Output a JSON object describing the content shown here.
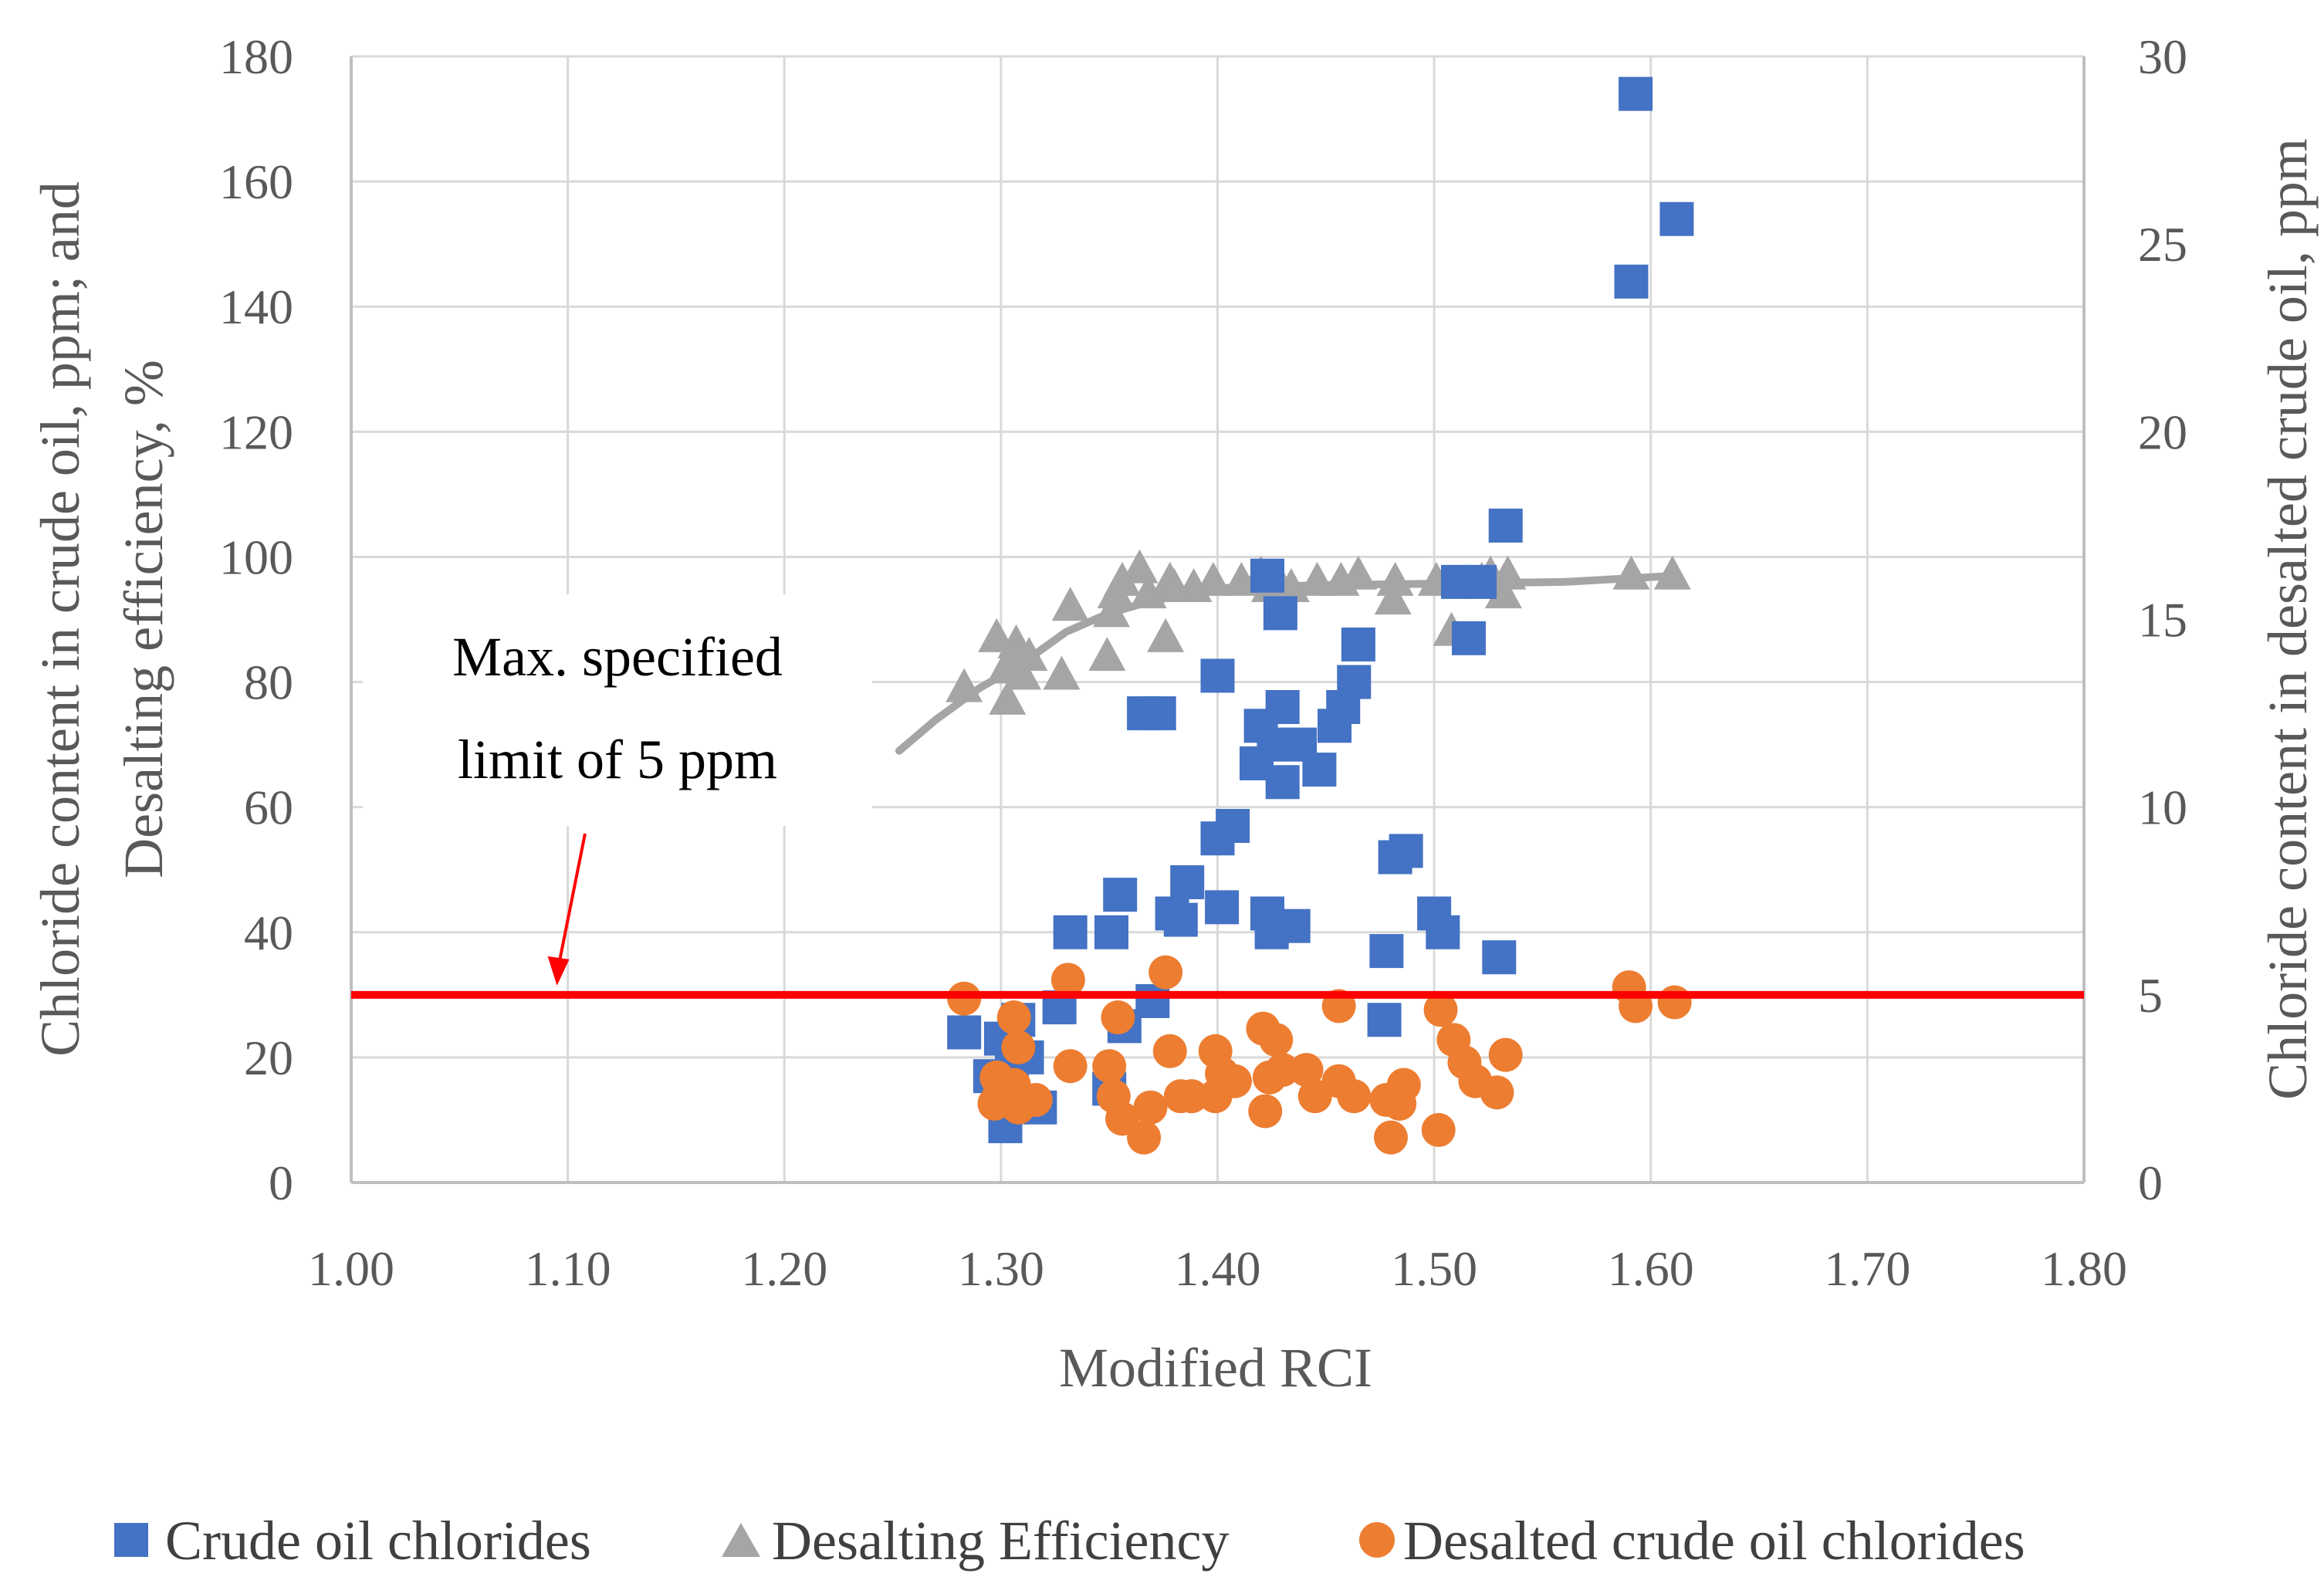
{
  "chart_data": {
    "type": "scatter",
    "xlabel": "Modified RCI",
    "ylabel_left": "Chloride content in crude oil, ppm; and Desalting efficiency, %",
    "ylabel_left_lines": [
      "Chloride content in crude oil, ppm; and",
      "Desalting efficiency, %"
    ],
    "ylabel_right": "Chloride content in desalted crude oil, ppm",
    "xlim": [
      1.0,
      1.8
    ],
    "ylim_left": [
      0,
      180
    ],
    "ylim_right": [
      0,
      30
    ],
    "x_ticks": [
      "1.00",
      "1.10",
      "1.20",
      "1.30",
      "1.40",
      "1.50",
      "1.60",
      "1.70",
      "1.80"
    ],
    "y_left_ticks": [
      "0",
      "20",
      "40",
      "60",
      "80",
      "100",
      "120",
      "140",
      "160",
      "180"
    ],
    "y_right_ticks": [
      "0",
      "5",
      "10",
      "15",
      "20",
      "25",
      "30"
    ],
    "grid": true,
    "legend_position": "bottom",
    "limit_line": {
      "axis": "right",
      "value": 5,
      "color": "#FF0000"
    },
    "annotation": {
      "lines": [
        "Max. specified",
        "limit of 5 ppm"
      ],
      "points_to": {
        "x": 1.095,
        "y_right": 5
      }
    },
    "series": [
      {
        "name": "Crude oil chlorides",
        "marker": "square",
        "color": "#4472C4",
        "axis": "left",
        "points": [
          [
            1.593,
            174
          ],
          [
            1.612,
            154
          ],
          [
            1.591,
            144
          ],
          [
            1.533,
            105
          ],
          [
            1.423,
            97
          ],
          [
            1.521,
            96
          ],
          [
            1.511,
            96
          ],
          [
            1.429,
            91
          ],
          [
            1.516,
            87
          ],
          [
            1.465,
            86
          ],
          [
            1.4,
            81
          ],
          [
            1.463,
            80
          ],
          [
            1.458,
            76
          ],
          [
            1.43,
            76
          ],
          [
            1.366,
            75
          ],
          [
            1.373,
            75
          ],
          [
            1.454,
            73
          ],
          [
            1.42,
            73
          ],
          [
            1.426,
            70
          ],
          [
            1.438,
            70
          ],
          [
            1.418,
            67
          ],
          [
            1.447,
            66
          ],
          [
            1.43,
            64
          ],
          [
            1.407,
            57
          ],
          [
            1.4,
            55
          ],
          [
            1.487,
            53
          ],
          [
            1.482,
            52
          ],
          [
            1.386,
            48
          ],
          [
            1.355,
            46
          ],
          [
            1.379,
            43
          ],
          [
            1.402,
            44
          ],
          [
            1.383,
            42
          ],
          [
            1.423,
            43
          ],
          [
            1.5,
            43
          ],
          [
            1.435,
            41
          ],
          [
            1.425,
            40
          ],
          [
            1.504,
            40
          ],
          [
            1.332,
            40
          ],
          [
            1.351,
            40
          ],
          [
            1.53,
            36
          ],
          [
            1.478,
            37
          ],
          [
            1.37,
            29
          ],
          [
            1.327,
            28
          ],
          [
            1.308,
            26
          ],
          [
            1.477,
            26
          ],
          [
            1.283,
            24
          ],
          [
            1.357,
            25
          ],
          [
            1.312,
            20
          ],
          [
            1.3,
            23
          ],
          [
            1.295,
            17
          ],
          [
            1.305,
            18
          ],
          [
            1.35,
            15
          ],
          [
            1.318,
            12
          ],
          [
            1.302,
            9
          ]
        ]
      },
      {
        "name": "Desalting Efficiency",
        "marker": "triangle",
        "color": "#A5A5A5",
        "axis": "left",
        "points": [
          [
            1.61,
            97
          ],
          [
            1.591,
            97
          ],
          [
            1.526,
            97
          ],
          [
            1.534,
            97
          ],
          [
            1.522,
            96
          ],
          [
            1.501,
            96
          ],
          [
            1.482,
            96
          ],
          [
            1.465,
            97
          ],
          [
            1.446,
            96
          ],
          [
            1.457,
            96
          ],
          [
            1.428,
            96
          ],
          [
            1.42,
            97
          ],
          [
            1.424,
            95
          ],
          [
            1.434,
            95
          ],
          [
            1.411,
            96
          ],
          [
            1.398,
            96
          ],
          [
            1.389,
            95
          ],
          [
            1.378,
            96
          ],
          [
            1.38,
            95
          ],
          [
            1.364,
            98
          ],
          [
            1.356,
            96
          ],
          [
            1.353,
            94
          ],
          [
            1.368,
            94
          ],
          [
            1.532,
            94
          ],
          [
            1.481,
            93
          ],
          [
            1.351,
            91
          ],
          [
            1.332,
            92
          ],
          [
            1.508,
            88
          ],
          [
            1.376,
            87
          ],
          [
            1.298,
            87
          ],
          [
            1.307,
            86
          ],
          [
            1.313,
            84
          ],
          [
            1.349,
            84
          ],
          [
            1.302,
            82
          ],
          [
            1.306,
            83
          ],
          [
            1.328,
            81
          ],
          [
            1.31,
            81
          ],
          [
            1.283,
            79
          ],
          [
            1.303,
            77
          ]
        ]
      },
      {
        "name": "Desalted crude oil chlorides",
        "marker": "circle",
        "color": "#ED7D31",
        "axis": "right",
        "points": [
          [
            1.59,
            5.2
          ],
          [
            1.611,
            4.8
          ],
          [
            1.593,
            4.7
          ],
          [
            1.283,
            4.9
          ],
          [
            1.331,
            5.4
          ],
          [
            1.376,
            5.6
          ],
          [
            1.306,
            4.4
          ],
          [
            1.354,
            4.4
          ],
          [
            1.456,
            4.7
          ],
          [
            1.503,
            4.6
          ],
          [
            1.421,
            4.1
          ],
          [
            1.427,
            3.8
          ],
          [
            1.509,
            3.8
          ],
          [
            1.308,
            3.6
          ],
          [
            1.378,
            3.5
          ],
          [
            1.399,
            3.5
          ],
          [
            1.533,
            3.4
          ],
          [
            1.514,
            3.2
          ],
          [
            1.332,
            3.1
          ],
          [
            1.35,
            3.1
          ],
          [
            1.402,
            2.9
          ],
          [
            1.43,
            3.0
          ],
          [
            1.441,
            3.0
          ],
          [
            1.298,
            2.8
          ],
          [
            1.306,
            2.6
          ],
          [
            1.408,
            2.7
          ],
          [
            1.424,
            2.8
          ],
          [
            1.456,
            2.7
          ],
          [
            1.519,
            2.7
          ],
          [
            1.486,
            2.6
          ],
          [
            1.529,
            2.4
          ],
          [
            1.299,
            2.3
          ],
          [
            1.316,
            2.2
          ],
          [
            1.352,
            2.3
          ],
          [
            1.383,
            2.3
          ],
          [
            1.388,
            2.3
          ],
          [
            1.399,
            2.3
          ],
          [
            1.445,
            2.3
          ],
          [
            1.463,
            2.3
          ],
          [
            1.484,
            2.1
          ],
          [
            1.297,
            2.1
          ],
          [
            1.308,
            2.0
          ],
          [
            1.369,
            2.0
          ],
          [
            1.356,
            1.7
          ],
          [
            1.422,
            1.9
          ],
          [
            1.478,
            2.2
          ],
          [
            1.502,
            1.4
          ],
          [
            1.48,
            1.2
          ],
          [
            1.366,
            1.2
          ]
        ]
      }
    ],
    "trendline": {
      "series": "Desalting Efficiency",
      "type": "logarithmic",
      "color": "#A5A5A5",
      "points": [
        [
          1.253,
          69
        ],
        [
          1.27,
          74
        ],
        [
          1.29,
          79
        ],
        [
          1.31,
          83
        ],
        [
          1.33,
          88
        ],
        [
          1.35,
          91
        ],
        [
          1.37,
          93
        ],
        [
          1.4,
          95
        ],
        [
          1.45,
          95.5
        ],
        [
          1.5,
          95.7
        ],
        [
          1.56,
          96
        ],
        [
          1.612,
          97
        ]
      ]
    }
  },
  "legend": {
    "items": [
      {
        "label": "Crude oil chlorides",
        "marker": "square",
        "color": "#4472C4"
      },
      {
        "label": "Desalting Efficiency",
        "marker": "triangle",
        "color": "#A5A5A5"
      },
      {
        "label": "Desalted crude oil chlorides",
        "marker": "circle",
        "color": "#ED7D31"
      }
    ]
  }
}
